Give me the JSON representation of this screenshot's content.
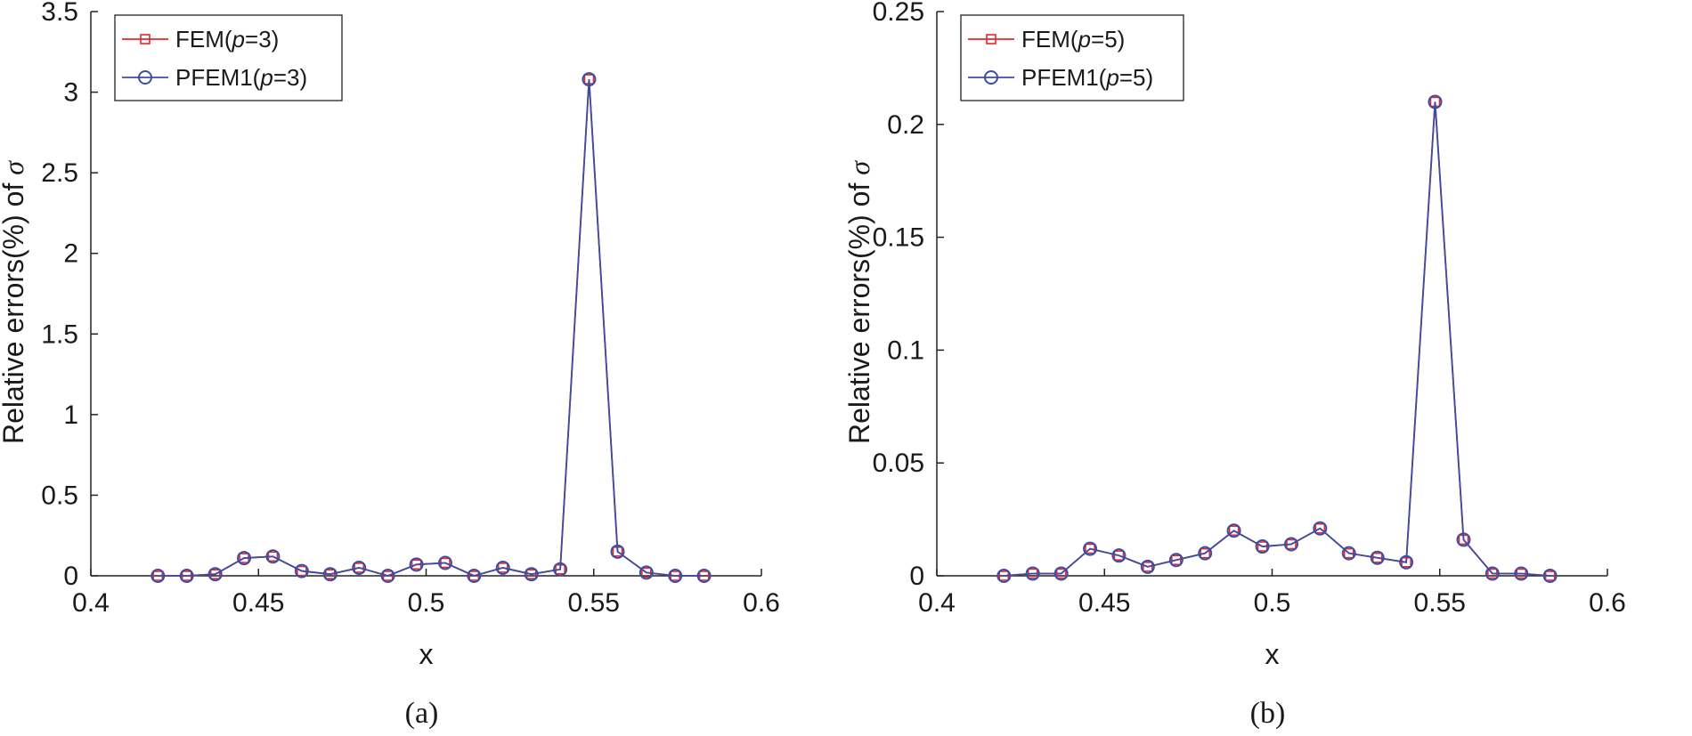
{
  "chart_data": [
    {
      "id": "a",
      "type": "line",
      "caption": "(a)",
      "xlabel": "x",
      "ylabel_prefix": "Relative errors(%) of ",
      "ylabel_symbol": "σ",
      "xlim": [
        0.4,
        0.6
      ],
      "ylim": [
        0,
        3.5
      ],
      "xticks": [
        0.4,
        0.45,
        0.5,
        0.55,
        0.6
      ],
      "xtick_labels": [
        "0.4",
        "0.45",
        "0.5",
        "0.55",
        "0.6"
      ],
      "yticks": [
        0,
        0.5,
        1,
        1.5,
        2,
        2.5,
        3,
        3.5
      ],
      "ytick_labels": [
        "0",
        "0.5",
        "1",
        "1.5",
        "2",
        "2.5",
        "3",
        "3.5"
      ],
      "grid": false,
      "legend_position": "top-left",
      "x": [
        0.42,
        0.4286,
        0.4371,
        0.4457,
        0.4543,
        0.4629,
        0.4714,
        0.48,
        0.4886,
        0.4971,
        0.5057,
        0.5143,
        0.5229,
        0.5314,
        0.54,
        0.5486,
        0.5571,
        0.5657,
        0.5743,
        0.5829
      ],
      "series": [
        {
          "name": "FEM(p=3)",
          "legend_parts": [
            "FEM(",
            "p",
            "=3)"
          ],
          "color": "#e8262b",
          "marker": "square",
          "values": [
            0.0,
            0.0,
            0.01,
            0.11,
            0.12,
            0.03,
            0.01,
            0.05,
            0.0,
            0.07,
            0.08,
            0.0,
            0.05,
            0.01,
            0.04,
            3.08,
            0.15,
            0.02,
            0.0,
            0.0
          ]
        },
        {
          "name": "PFEM1(p=3)",
          "legend_parts": [
            "PFEM1(",
            "p",
            "=3)"
          ],
          "color": "#3c4ea3",
          "marker": "circle",
          "values": [
            0.0,
            0.0,
            0.01,
            0.11,
            0.12,
            0.03,
            0.01,
            0.05,
            0.0,
            0.07,
            0.08,
            0.0,
            0.05,
            0.01,
            0.04,
            3.08,
            0.15,
            0.02,
            0.0,
            0.0
          ]
        }
      ]
    },
    {
      "id": "b",
      "type": "line",
      "caption": "(b)",
      "xlabel": "x",
      "ylabel_prefix": "Relative errors(%) of ",
      "ylabel_symbol": "σ",
      "xlim": [
        0.4,
        0.6
      ],
      "ylim": [
        0,
        0.25
      ],
      "xticks": [
        0.4,
        0.45,
        0.5,
        0.55,
        0.6
      ],
      "xtick_labels": [
        "0.4",
        "0.45",
        "0.5",
        "0.55",
        "0.6"
      ],
      "yticks": [
        0,
        0.05,
        0.1,
        0.15,
        0.2,
        0.25
      ],
      "ytick_labels": [
        "0",
        "0.05",
        "0.1",
        "0.15",
        "0.2",
        "0.25"
      ],
      "grid": false,
      "legend_position": "top-left",
      "x": [
        0.42,
        0.4286,
        0.4371,
        0.4457,
        0.4543,
        0.4629,
        0.4714,
        0.48,
        0.4886,
        0.4971,
        0.5057,
        0.5143,
        0.5229,
        0.5314,
        0.54,
        0.5486,
        0.5571,
        0.5657,
        0.5743,
        0.5829
      ],
      "series": [
        {
          "name": "FEM(p=5)",
          "legend_parts": [
            "FEM(",
            "p",
            "=5)"
          ],
          "color": "#e8262b",
          "marker": "square",
          "values": [
            0.0,
            0.001,
            0.001,
            0.012,
            0.009,
            0.004,
            0.007,
            0.01,
            0.02,
            0.013,
            0.014,
            0.021,
            0.01,
            0.008,
            0.006,
            0.21,
            0.016,
            0.001,
            0.001,
            0.0
          ]
        },
        {
          "name": "PFEM1(p=5)",
          "legend_parts": [
            "PFEM1(",
            "p",
            "=5)"
          ],
          "color": "#3c4ea3",
          "marker": "circle",
          "values": [
            0.0,
            0.001,
            0.001,
            0.012,
            0.009,
            0.004,
            0.007,
            0.01,
            0.02,
            0.013,
            0.014,
            0.021,
            0.01,
            0.008,
            0.006,
            0.21,
            0.016,
            0.001,
            0.001,
            0.0
          ]
        }
      ]
    }
  ]
}
